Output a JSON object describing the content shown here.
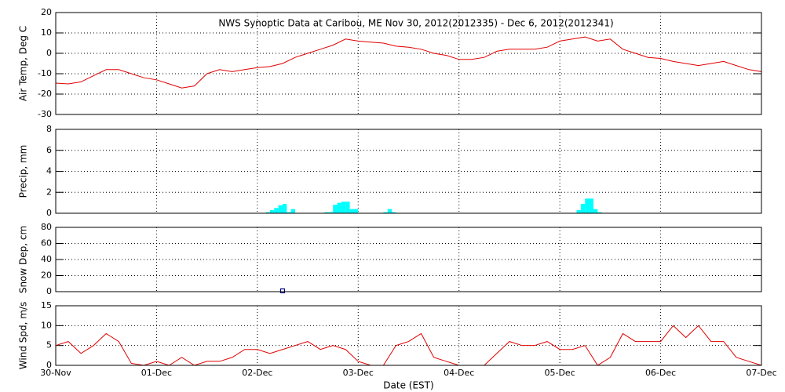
{
  "chart_data": [
    {
      "type": "line",
      "title": "NWS Synoptic Data at Caribou, ME   Nov 30, 2012(2012335) - Dec  6, 2012(2012341)",
      "ylabel": "Air Temp, Deg C",
      "ylim": [
        -30,
        20
      ],
      "yticks": [
        -30,
        -20,
        -10,
        0,
        10,
        20
      ],
      "grid": true,
      "series": [
        {
          "color": "#e00000",
          "x": [
            0,
            3,
            6,
            9,
            12,
            15,
            18,
            21,
            24,
            27,
            30,
            33,
            36,
            39,
            42,
            45,
            48,
            51,
            54,
            57,
            60,
            63,
            66,
            69,
            72,
            75,
            78,
            81,
            84,
            87,
            90,
            93,
            96,
            99,
            102,
            105,
            108,
            111,
            114,
            117,
            120,
            123,
            126,
            129,
            132,
            135,
            138,
            141,
            144,
            147,
            150,
            153,
            156,
            159,
            162,
            165,
            168
          ],
          "values": [
            -14.6,
            -15,
            -14,
            -11,
            -8,
            -8,
            -10,
            -12,
            -13,
            -15,
            -17,
            -16,
            -10,
            -8,
            -9,
            -8,
            -7,
            -6.5,
            -5,
            -2,
            0,
            2,
            4,
            7,
            6,
            5.5,
            5,
            3.5,
            3,
            2,
            0,
            -1,
            -3,
            -3,
            -2,
            1,
            2,
            2,
            2,
            3,
            6,
            7,
            8,
            6,
            7,
            2,
            0,
            -2,
            -2.5,
            -4,
            -5,
            -6,
            -5,
            -4,
            -6,
            -8,
            -9
          ]
        }
      ]
    },
    {
      "type": "bar",
      "ylabel": "Precip, mm",
      "ylim": [
        0,
        8
      ],
      "yticks": [
        0,
        2,
        4,
        6,
        8
      ],
      "grid": true,
      "color": "#00ffff",
      "x": [
        50,
        51,
        52,
        53,
        54,
        55,
        56,
        64,
        65,
        66,
        67,
        68,
        69,
        70,
        71,
        78,
        79,
        80,
        124,
        125,
        126,
        127,
        128,
        129
      ],
      "values": [
        0.1,
        0.3,
        0.5,
        0.75,
        0.9,
        0.1,
        0.4,
        0.1,
        0.1,
        0.8,
        1.0,
        1.1,
        1.1,
        0.4,
        0.4,
        0.1,
        0.4,
        0.1,
        0.3,
        0.9,
        1.4,
        1.4,
        0.4,
        0.1
      ]
    },
    {
      "type": "scatter",
      "ylabel": "Snow Dep, cm",
      "ylim": [
        0,
        80
      ],
      "yticks": [
        0,
        20,
        40,
        60,
        80
      ],
      "grid": true,
      "color": "#000080",
      "x": [
        54
      ],
      "values": [
        1
      ]
    },
    {
      "type": "line",
      "ylabel": "Wind Spd, m/s",
      "xlabel": "Date (EST)",
      "ylim": [
        0,
        15
      ],
      "yticks": [
        0,
        5,
        10,
        15
      ],
      "grid": true,
      "xlim": [
        0,
        168
      ],
      "xticks": [
        {
          "value": 0,
          "label": "30-Nov"
        },
        {
          "value": 24,
          "label": "01-Dec"
        },
        {
          "value": 48,
          "label": "02-Dec"
        },
        {
          "value": 72,
          "label": "03-Dec"
        },
        {
          "value": 96,
          "label": "04-Dec"
        },
        {
          "value": 120,
          "label": "05-Dec"
        },
        {
          "value": 144,
          "label": "06-Dec"
        },
        {
          "value": 168,
          "label": "07-Dec"
        }
      ],
      "series": [
        {
          "color": "#e00000",
          "x": [
            0,
            3,
            6,
            9,
            12,
            15,
            18,
            21,
            24,
            27,
            30,
            33,
            36,
            39,
            42,
            45,
            48,
            51,
            54,
            57,
            60,
            63,
            66,
            69,
            72,
            75,
            78,
            81,
            84,
            87,
            90,
            93,
            96,
            99,
            102,
            105,
            108,
            111,
            114,
            117,
            120,
            123,
            126,
            129,
            132,
            135,
            138,
            141,
            144,
            147,
            150,
            153,
            156,
            159,
            162,
            165,
            168
          ],
          "values": [
            5,
            6,
            3,
            5,
            8,
            6,
            0.5,
            0,
            1,
            0,
            2,
            0,
            1,
            1,
            2,
            4,
            4,
            3,
            4,
            5,
            6,
            4,
            5,
            4,
            1,
            0,
            0,
            5,
            6,
            8,
            2,
            1,
            0,
            0,
            0,
            3,
            6,
            5,
            5,
            6,
            4,
            4,
            5,
            0,
            2,
            8,
            6,
            6,
            6,
            10,
            7,
            10,
            6,
            6,
            2,
            1,
            0
          ]
        }
      ]
    }
  ]
}
